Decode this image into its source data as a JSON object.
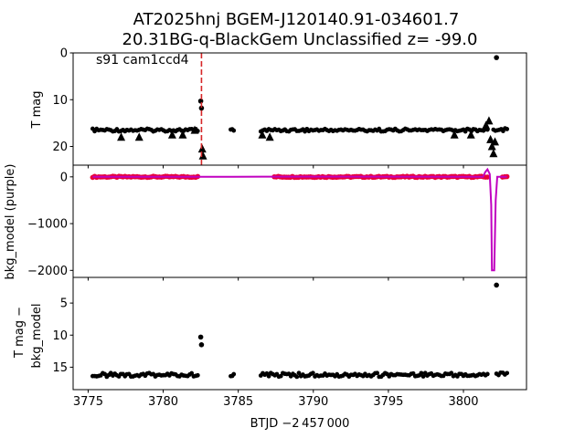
{
  "figure": {
    "title_line1": "AT2025hnj  BGEM-J120140.91-034601.7",
    "title_line2": "20.31BG-q-BlackGem Unclassified z= -99.0",
    "xlabel": "BTJD −2 457 000"
  },
  "chart_data": [
    {
      "type": "scatter",
      "panel": "top",
      "ylabel": "T mag",
      "annotation": "s91 cam1ccd4",
      "y_inverted": true,
      "ylim": [
        0,
        24
      ],
      "yticks": [
        0,
        10,
        20
      ],
      "xlim": [
        3774.0,
        3804.2
      ],
      "xticks": [
        3775,
        3780,
        3785,
        3790,
        3795,
        3800
      ],
      "vline": {
        "x": 3782.55,
        "color": "#d62728",
        "style": "dashed"
      },
      "segments": [
        {
          "x0": 3775.3,
          "x1": 3782.3,
          "y": 16.5
        },
        {
          "x0": 3784.5,
          "x1": 3784.7,
          "y": 16.6
        },
        {
          "x0": 3786.5,
          "x1": 3801.6,
          "y": 16.5
        },
        {
          "x0": 3802.0,
          "x1": 3802.9,
          "y": 16.4
        }
      ],
      "points": [
        {
          "x": 3782.5,
          "y": 10.3
        },
        {
          "x": 3782.55,
          "y": 11.8
        },
        {
          "x": 3802.2,
          "y": 1.0
        }
      ],
      "upper_limits": [
        {
          "x": 3777.2,
          "y": 18.0
        },
        {
          "x": 3778.4,
          "y": 18.0
        },
        {
          "x": 3780.6,
          "y": 17.5
        },
        {
          "x": 3781.3,
          "y": 17.5
        },
        {
          "x": 3782.1,
          "y": 16.5
        },
        {
          "x": 3782.6,
          "y": 20.5
        },
        {
          "x": 3782.65,
          "y": 22.0
        },
        {
          "x": 3786.6,
          "y": 17.5
        },
        {
          "x": 3787.1,
          "y": 18.0
        },
        {
          "x": 3799.4,
          "y": 17.5
        },
        {
          "x": 3800.5,
          "y": 17.5
        },
        {
          "x": 3801.5,
          "y": 15.5
        },
        {
          "x": 3801.7,
          "y": 14.5
        },
        {
          "x": 3801.8,
          "y": 18.5
        },
        {
          "x": 3801.9,
          "y": 20.0
        },
        {
          "x": 3802.0,
          "y": 21.5
        },
        {
          "x": 3802.1,
          "y": 19.0
        }
      ],
      "series": [
        {
          "color": "#000000",
          "marker": "circle"
        }
      ]
    },
    {
      "type": "scatter",
      "panel": "middle",
      "ylabel": "bkg_model (purple)",
      "ylim": [
        -2150,
        250
      ],
      "yticks": [
        0,
        -1000,
        -2000
      ],
      "xlim": [
        3774.0,
        3804.2
      ],
      "xticks": [
        3775,
        3780,
        3785,
        3790,
        3795,
        3800
      ],
      "red_segments": [
        {
          "x0": 3775.3,
          "x1": 3782.3,
          "y": 0
        },
        {
          "x0": 3787.4,
          "x1": 3801.6,
          "y": 0
        },
        {
          "x0": 3802.6,
          "x1": 3802.9,
          "y": 0
        }
      ],
      "model_curve": [
        {
          "x": 3775.3,
          "y": 0
        },
        {
          "x": 3782.3,
          "y": 0
        },
        {
          "x": 3786.6,
          "y": 5
        },
        {
          "x": 3801.3,
          "y": 0
        },
        {
          "x": 3801.45,
          "y": 100
        },
        {
          "x": 3801.6,
          "y": 160
        },
        {
          "x": 3801.75,
          "y": 60
        },
        {
          "x": 3801.85,
          "y": -600
        },
        {
          "x": 3801.9,
          "y": -2000
        },
        {
          "x": 3802.05,
          "y": -2000
        },
        {
          "x": 3802.15,
          "y": -500
        },
        {
          "x": 3802.25,
          "y": 0
        },
        {
          "x": 3802.9,
          "y": 0
        }
      ],
      "series": [
        {
          "color": "#e8003a",
          "marker": "circle"
        },
        {
          "color": "#c000c0",
          "marker": "line"
        }
      ]
    },
    {
      "type": "scatter",
      "panel": "bottom",
      "ylabel_line1": "T mag −",
      "ylabel_line2": "bkg_model",
      "y_inverted": true,
      "ylim": [
        1,
        18.5
      ],
      "yticks": [
        5,
        10,
        15
      ],
      "xlim": [
        3774.0,
        3804.2
      ],
      "xticks": [
        3775,
        3780,
        3785,
        3790,
        3795,
        3800
      ],
      "segments": [
        {
          "x0": 3775.3,
          "x1": 3782.3,
          "y": 16.2
        },
        {
          "x0": 3784.5,
          "x1": 3784.7,
          "y": 16.3
        },
        {
          "x0": 3786.5,
          "x1": 3801.6,
          "y": 16.2
        },
        {
          "x0": 3802.2,
          "x1": 3802.9,
          "y": 16.0
        }
      ],
      "points": [
        {
          "x": 3782.5,
          "y": 10.3
        },
        {
          "x": 3782.55,
          "y": 11.5
        },
        {
          "x": 3802.2,
          "y": 2.2
        }
      ],
      "series": [
        {
          "color": "#000000",
          "marker": "circle"
        }
      ]
    }
  ]
}
